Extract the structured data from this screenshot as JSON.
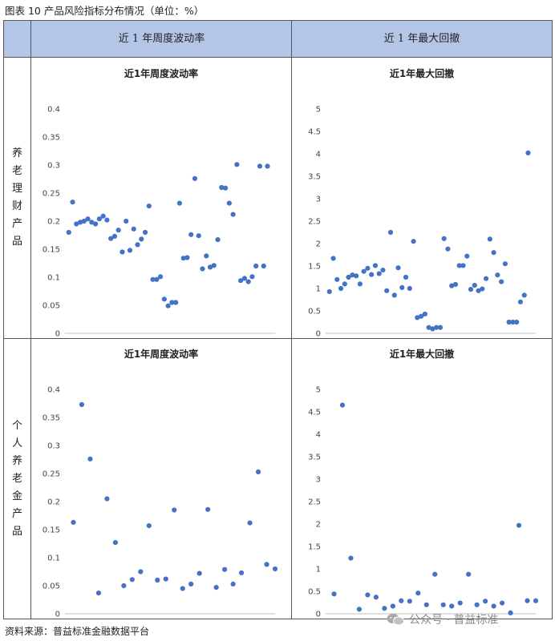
{
  "figure_title": "图表 10 产品风险指标分布情况（单位：%）",
  "header": {
    "col1": "近 1 年周度波动率",
    "col2": "近 1 年最大回撤"
  },
  "row_labels": {
    "row1": [
      "养",
      "老",
      "理",
      "财",
      "产",
      "品"
    ],
    "row2": [
      "个",
      "人",
      "养",
      "老",
      "金",
      "产",
      "品"
    ]
  },
  "source": "资料来源：普益标准金融数据平台",
  "watermark": "公众号 · 普益标准",
  "colors": {
    "marker": "#4472c4",
    "header_bg": "#b4c6e7"
  },
  "chart_data": [
    {
      "type": "scatter",
      "title": "近1年周度波动率",
      "xlim": [
        0,
        55
      ],
      "ylim": [
        0,
        0.4
      ],
      "xticks": [
        0,
        10,
        20,
        30,
        40,
        50
      ],
      "yticks": [
        "0",
        "0.05",
        "0.1",
        "0.15",
        "0.2",
        "0.25",
        "0.3",
        "0.35",
        "0.4"
      ],
      "grid": false,
      "points": [
        [
          1,
          0.18
        ],
        [
          2,
          0.234
        ],
        [
          3,
          0.195
        ],
        [
          4,
          0.198
        ],
        [
          5,
          0.2
        ],
        [
          6,
          0.204
        ],
        [
          7,
          0.198
        ],
        [
          8,
          0.195
        ],
        [
          9,
          0.204
        ],
        [
          10,
          0.209
        ],
        [
          11,
          0.202
        ],
        [
          12,
          0.169
        ],
        [
          13,
          0.173
        ],
        [
          14,
          0.184
        ],
        [
          15,
          0.145
        ],
        [
          16,
          0.2
        ],
        [
          17,
          0.148
        ],
        [
          18,
          0.186
        ],
        [
          19,
          0.158
        ],
        [
          20,
          0.168
        ],
        [
          21,
          0.18
        ],
        [
          22,
          0.227
        ],
        [
          23,
          0.096
        ],
        [
          24,
          0.096
        ],
        [
          25,
          0.101
        ],
        [
          26,
          0.061
        ],
        [
          27,
          0.049
        ],
        [
          28,
          0.055
        ],
        [
          29,
          0.055
        ],
        [
          30,
          0.232
        ],
        [
          31,
          0.134
        ],
        [
          32,
          0.135
        ],
        [
          33,
          0.176
        ],
        [
          34,
          0.276
        ],
        [
          35,
          0.174
        ],
        [
          36,
          0.115
        ],
        [
          37,
          0.138
        ],
        [
          38,
          0.118
        ],
        [
          39,
          0.121
        ],
        [
          40,
          0.167
        ],
        [
          41,
          0.26
        ],
        [
          42,
          0.259
        ],
        [
          43,
          0.232
        ],
        [
          44,
          0.212
        ],
        [
          45,
          0.301
        ],
        [
          46,
          0.094
        ],
        [
          47,
          0.098
        ],
        [
          48,
          0.092
        ],
        [
          49,
          0.101
        ],
        [
          50,
          0.12
        ],
        [
          51,
          0.298
        ],
        [
          52,
          0.12
        ],
        [
          53,
          0.298
        ]
      ]
    },
    {
      "type": "scatter",
      "title": "近1年最大回撤",
      "xlim": [
        0,
        55
      ],
      "ylim": [
        0,
        5
      ],
      "xticks": [
        0,
        10,
        20,
        30,
        40,
        50
      ],
      "yticks": [
        "0",
        "0.5",
        "1",
        "1.5",
        "2",
        "2.5",
        "3",
        "3.5",
        "4",
        "4.5",
        "5"
      ],
      "grid": false,
      "points": [
        [
          1,
          0.93
        ],
        [
          2,
          1.67
        ],
        [
          3,
          1.2
        ],
        [
          4,
          1.0
        ],
        [
          5,
          1.1
        ],
        [
          6,
          1.25
        ],
        [
          7,
          1.3
        ],
        [
          8,
          1.28
        ],
        [
          9,
          1.1
        ],
        [
          10,
          1.38
        ],
        [
          11,
          1.45
        ],
        [
          12,
          1.31
        ],
        [
          13,
          1.51
        ],
        [
          14,
          1.33
        ],
        [
          15,
          1.41
        ],
        [
          16,
          0.95
        ],
        [
          17,
          2.25
        ],
        [
          18,
          0.85
        ],
        [
          19,
          1.46
        ],
        [
          20,
          1.02
        ],
        [
          21,
          1.25
        ],
        [
          22,
          1.0
        ],
        [
          23,
          2.05
        ],
        [
          24,
          0.35
        ],
        [
          25,
          0.38
        ],
        [
          26,
          0.43
        ],
        [
          27,
          0.13
        ],
        [
          28,
          0.1
        ],
        [
          29,
          0.13
        ],
        [
          30,
          0.13
        ],
        [
          31,
          2.11
        ],
        [
          32,
          1.88
        ],
        [
          33,
          1.06
        ],
        [
          34,
          1.09
        ],
        [
          35,
          1.51
        ],
        [
          36,
          1.51
        ],
        [
          37,
          1.72
        ],
        [
          38,
          0.98
        ],
        [
          39,
          1.07
        ],
        [
          40,
          0.95
        ],
        [
          41,
          0.99
        ],
        [
          42,
          1.22
        ],
        [
          43,
          2.1
        ],
        [
          44,
          1.8
        ],
        [
          45,
          1.3
        ],
        [
          46,
          1.15
        ],
        [
          47,
          1.55
        ],
        [
          48,
          0.25
        ],
        [
          49,
          0.25
        ],
        [
          50,
          0.25
        ],
        [
          51,
          0.7
        ],
        [
          52,
          0.85
        ],
        [
          53,
          4.02
        ]
      ]
    },
    {
      "type": "scatter",
      "title": "近1年周度波动率",
      "xlim": [
        0,
        25
      ],
      "ylim": [
        0,
        0.4
      ],
      "xticks": [
        0,
        5,
        10,
        15,
        20,
        25
      ],
      "yticks": [
        "0",
        "0.05",
        "0.1",
        "0.15",
        "0.2",
        "0.25",
        "0.3",
        "0.35",
        "0.4"
      ],
      "grid": false,
      "points": [
        [
          1,
          0.163
        ],
        [
          2,
          0.373
        ],
        [
          3,
          0.276
        ],
        [
          4,
          0.037
        ],
        [
          5,
          0.205
        ],
        [
          6,
          0.127
        ],
        [
          7,
          0.05
        ],
        [
          8,
          0.061
        ],
        [
          9,
          0.075
        ],
        [
          10,
          0.157
        ],
        [
          11,
          0.06
        ],
        [
          12,
          0.062
        ],
        [
          13,
          0.185
        ],
        [
          14,
          0.045
        ],
        [
          15,
          0.053
        ],
        [
          16,
          0.072
        ],
        [
          17,
          0.186
        ],
        [
          18,
          0.047
        ],
        [
          19,
          0.079
        ],
        [
          20,
          0.053
        ],
        [
          21,
          0.073
        ],
        [
          22,
          0.162
        ],
        [
          23,
          0.253
        ],
        [
          24,
          0.088
        ],
        [
          25,
          0.08
        ]
      ]
    },
    {
      "type": "scatter",
      "title": "近1年最大回撤",
      "xlim": [
        0,
        25
      ],
      "ylim": [
        0,
        5
      ],
      "xticks": [
        0,
        5,
        10,
        15,
        20,
        25
      ],
      "yticks": [
        "0",
        "0.5",
        "1",
        "1.5",
        "2",
        "2.5",
        "3",
        "3.5",
        "4",
        "4.5",
        "5"
      ],
      "grid": false,
      "points": [
        [
          1,
          0.44
        ],
        [
          2,
          4.65
        ],
        [
          3,
          1.24
        ],
        [
          4,
          0.1
        ],
        [
          5,
          0.42
        ],
        [
          6,
          0.37
        ],
        [
          7,
          0.12
        ],
        [
          8,
          0.17
        ],
        [
          9,
          0.29
        ],
        [
          10,
          0.28
        ],
        [
          11,
          0.46
        ],
        [
          12,
          0.2
        ],
        [
          13,
          0.88
        ],
        [
          14,
          0.2
        ],
        [
          15,
          0.17
        ],
        [
          16,
          0.24
        ],
        [
          17,
          0.88
        ],
        [
          18,
          0.2
        ],
        [
          19,
          0.28
        ],
        [
          20,
          0.17
        ],
        [
          21,
          0.24
        ],
        [
          22,
          0.02
        ],
        [
          23,
          1.97
        ],
        [
          24,
          0.29
        ],
        [
          25,
          0.29
        ]
      ]
    }
  ]
}
